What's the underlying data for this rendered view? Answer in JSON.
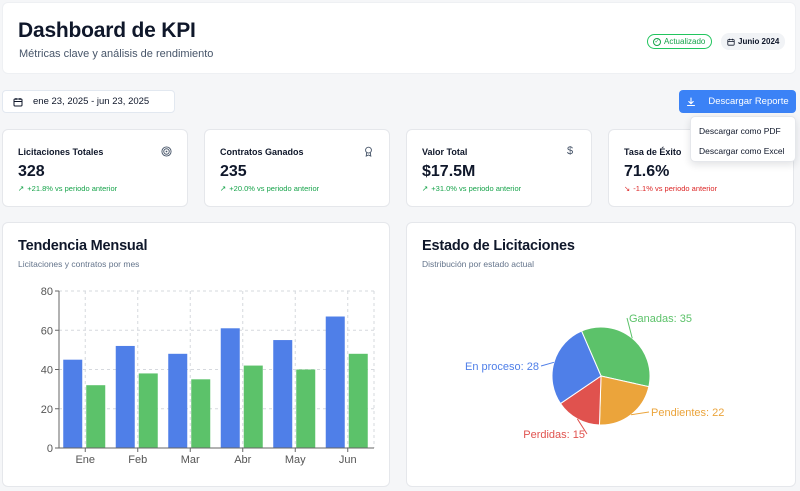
{
  "header": {
    "title": "Dashboard de KPI",
    "subtitle": "Métricas clave y análisis de rendimiento",
    "badge_updated": "Actualizado",
    "badge_date": "Junio 2024"
  },
  "toolbar": {
    "date_range": "ene 23, 2025 - jun 23, 2025",
    "download_label": "Descargar Reporte",
    "download_menu": [
      "Descargar como PDF",
      "Descargar como Excel"
    ]
  },
  "kpis": [
    {
      "label": "Licitaciones Totales",
      "value": "328",
      "delta": "+21.8% vs periodo anterior",
      "trend": "up",
      "icon": "target-icon"
    },
    {
      "label": "Contratos Ganados",
      "value": "235",
      "delta": "+20.0% vs periodo anterior",
      "trend": "up",
      "icon": "award-icon"
    },
    {
      "label": "Valor Total",
      "value": "$17.5M",
      "delta": "+31.0% vs periodo anterior",
      "trend": "up",
      "icon": "dollar-icon"
    },
    {
      "label": "Tasa de Éxito",
      "value": "71.6%",
      "delta": "-1.1% vs periodo anterior",
      "trend": "down",
      "icon": "percent-icon"
    }
  ],
  "colors": {
    "primary": "#3b82f6",
    "blue_series": "#4f7fe8",
    "green_series": "#5cc26a",
    "up": "#16a34a",
    "down": "#dc2626"
  },
  "trend_chart": {
    "title": "Tendencia Mensual",
    "subtitle": "Licitaciones y contratos por mes"
  },
  "status_chart": {
    "title": "Estado de Licitaciones",
    "subtitle": "Distribución por estado actual"
  },
  "chart_data": [
    {
      "type": "bar",
      "categories": [
        "Ene",
        "Feb",
        "Mar",
        "Abr",
        "May",
        "Jun"
      ],
      "series": [
        {
          "values": [
            45,
            52,
            48,
            61,
            55,
            67
          ],
          "color": "#4f7fe8"
        },
        {
          "values": [
            32,
            38,
            35,
            42,
            40,
            48
          ],
          "color": "#5cc26a"
        }
      ],
      "yticks": [
        0,
        20,
        40,
        60,
        80
      ],
      "ylim": [
        0,
        80
      ],
      "grid": true
    },
    {
      "type": "pie",
      "slices": [
        {
          "label": "Ganadas",
          "value": 35,
          "color": "#5cc26a"
        },
        {
          "label": "Pendientes",
          "value": 22,
          "color": "#eba43b"
        },
        {
          "label": "Perdidas",
          "value": 15,
          "color": "#e0524e"
        },
        {
          "label": "En proceso",
          "value": 28,
          "color": "#4f7fe8"
        }
      ]
    }
  ]
}
